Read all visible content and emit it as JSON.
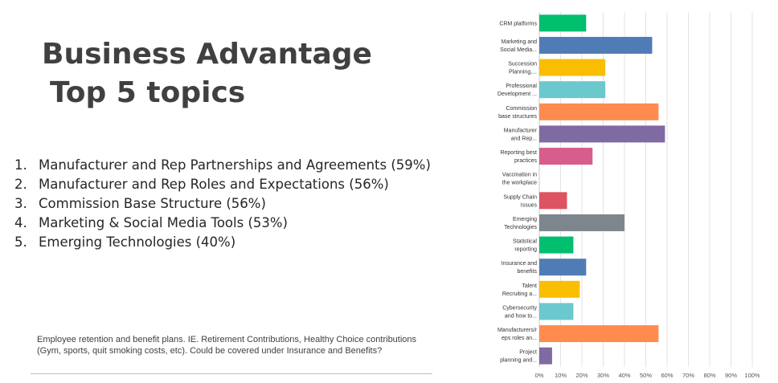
{
  "slide": {
    "title_line1": "Business Advantage",
    "title_line2": "Top 5 topics",
    "top_topics": [
      {
        "num": "1.",
        "text": "Manufacturer and Rep Partnerships and Agreements (59%)"
      },
      {
        "num": "2.",
        "text": "Manufacturer and Rep Roles and Expectations (56%)"
      },
      {
        "num": "3.",
        "text": "Commission Base Structure (56%)"
      },
      {
        "num": "4.",
        "text": "Marketing & Social Media Tools (53%)"
      },
      {
        "num": "5.",
        "text": "Emerging Technologies (40%)"
      }
    ],
    "note": "Employee retention and benefit plans. IE. Retirement Contributions, Healthy Choice contributions (Gym, sports, quit smoking costs, etc). Could be covered under Insurance and Benefits?"
  },
  "chart_data": {
    "type": "bar",
    "orientation": "horizontal",
    "categories": [
      [
        "CRM platforms"
      ],
      [
        "Marketing and",
        "Social Media..."
      ],
      [
        "Succession",
        "Planning,..."
      ],
      [
        "Professional",
        "Development ..."
      ],
      [
        "Commission",
        "base structures"
      ],
      [
        "Manufacturer",
        "and Rep..."
      ],
      [
        "Reporting best",
        "practices"
      ],
      [
        "Vaccination in",
        "the workplace"
      ],
      [
        "Supply Chain",
        "Issues"
      ],
      [
        "Emerging",
        "Technologies"
      ],
      [
        "Statistical",
        "reporting"
      ],
      [
        "Insurance and",
        "benefits"
      ],
      [
        "Talent",
        "Recruiting a..."
      ],
      [
        "Cybersecurity",
        "and how to..."
      ],
      [
        "Manufacturers/r",
        "eps roles an..."
      ],
      [
        "Project",
        "planning and..."
      ]
    ],
    "values": [
      22,
      53,
      31,
      31,
      56,
      59,
      25,
      0,
      13,
      40,
      16,
      22,
      19,
      16,
      56,
      6
    ],
    "unit": "%",
    "xlim": [
      0,
      100
    ],
    "xticks": [
      0,
      10,
      20,
      30,
      40,
      50,
      60,
      70,
      80,
      90,
      100
    ],
    "xtick_labels": [
      "0%",
      "10%",
      "20%",
      "30%",
      "40%",
      "50%",
      "60%",
      "70%",
      "80%",
      "90%",
      "100%"
    ],
    "grid": true,
    "colors": [
      "#00bf6f",
      "#507cb6",
      "#f9be00",
      "#6bc8cd",
      "#ff8b4f",
      "#7f6aa1",
      "#d65d8c",
      "#cccccc",
      "#dd5361",
      "#7d868c",
      "#00bf6f",
      "#507cb6",
      "#f9be00",
      "#6bc8cd",
      "#ff8b4f",
      "#7f6aa1"
    ]
  }
}
